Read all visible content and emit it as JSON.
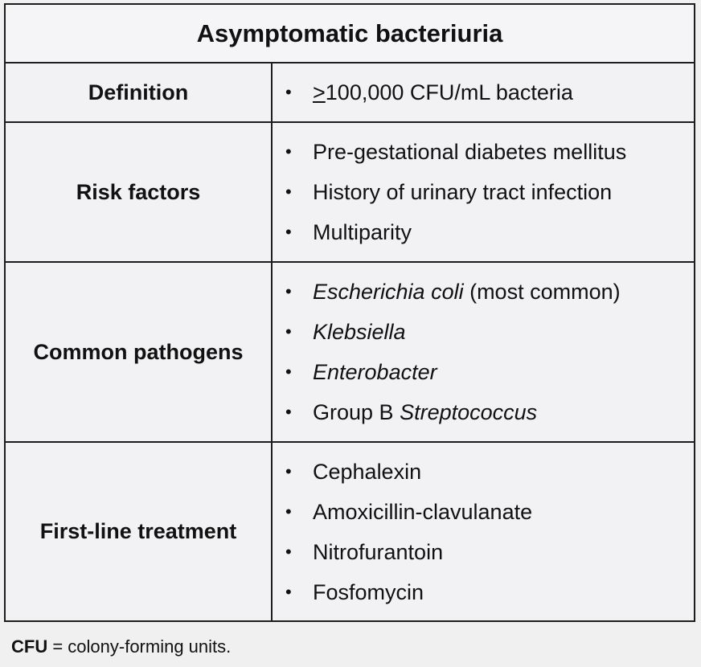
{
  "title": "Asymptomatic bacteriuria",
  "bullet_glyph": "•",
  "rows": [
    {
      "label": "Definition",
      "items": [
        {
          "prefix_underlined": ">",
          "text": "100,000 CFU/mL bacteria"
        }
      ]
    },
    {
      "label": "Risk factors",
      "items": [
        {
          "text": "Pre-gestational diabetes mellitus"
        },
        {
          "text": "History of urinary tract infection"
        },
        {
          "text": "Multiparity"
        }
      ]
    },
    {
      "label": "Common pathogens",
      "items": [
        {
          "italic": "Escherichia coli",
          "text": " (most common)"
        },
        {
          "italic": "Klebsiella"
        },
        {
          "italic": "Enterobacter"
        },
        {
          "text": "Group B ",
          "italic": "Streptococcus"
        }
      ]
    },
    {
      "label": "First-line treatment",
      "items": [
        {
          "text": "Cephalexin"
        },
        {
          "text": "Amoxicillin-clavulanate"
        },
        {
          "text": "Nitrofurantoin"
        },
        {
          "text": "Fosfomycin"
        }
      ]
    }
  ],
  "footnote": {
    "term": "CFU",
    "definition": " = colony-forming units."
  }
}
